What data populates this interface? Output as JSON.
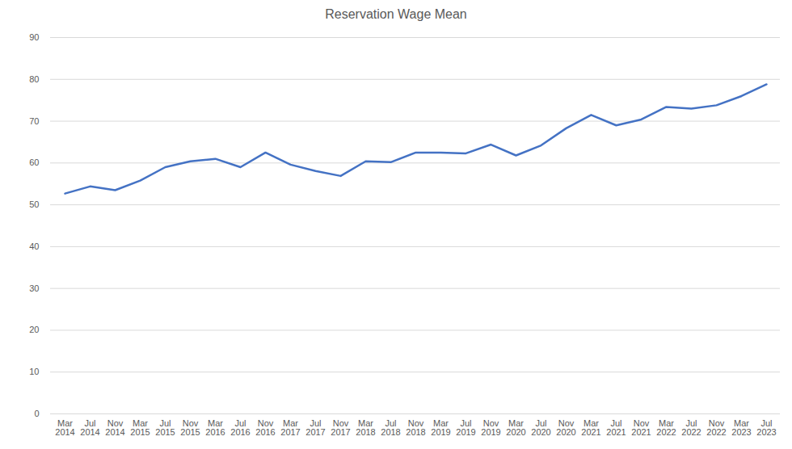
{
  "chart_data": {
    "type": "line",
    "title": "Reservation Wage Mean",
    "categories": [
      "Mar 2014",
      "Jul 2014",
      "Nov 2014",
      "Mar 2015",
      "Jul 2015",
      "Nov 2015",
      "Mar 2016",
      "Jul 2016",
      "Nov 2016",
      "Mar 2017",
      "Jul 2017",
      "Nov 2017",
      "Mar 2018",
      "Jul 2018",
      "Nov 2018",
      "Mar 2019",
      "Jul 2019",
      "Nov 2019",
      "Mar 2020",
      "Jul 2020",
      "Nov 2020",
      "Mar 2021",
      "Jul 2021",
      "Nov 2021",
      "Mar 2022",
      "Jul 2022",
      "Nov 2022",
      "Mar 2023",
      "Jul 2023"
    ],
    "values": [
      52.7,
      54.4,
      53.5,
      55.8,
      59.0,
      60.4,
      61.0,
      59.0,
      62.5,
      59.6,
      58.1,
      56.9,
      60.4,
      60.2,
      62.5,
      62.5,
      62.3,
      64.4,
      61.8,
      64.2,
      68.3,
      71.5,
      69.0,
      70.4,
      73.4,
      73.0,
      73.8,
      76.0,
      78.8
    ],
    "color": "#4472c4",
    "ylim": [
      0,
      90
    ],
    "yticks": [
      0,
      10,
      20,
      30,
      40,
      50,
      60,
      70,
      80,
      90
    ],
    "grid": true
  }
}
